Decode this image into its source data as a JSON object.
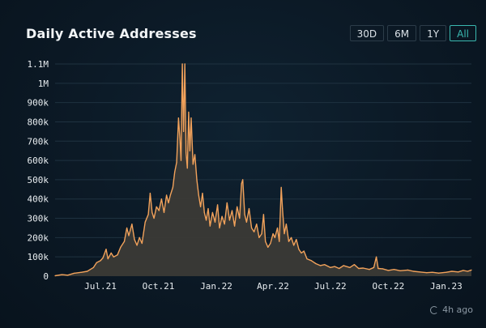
{
  "chart_data": {
    "type": "area",
    "title": "Daily Active Addresses",
    "ylim": [
      0,
      1100000
    ],
    "y_ticks": [
      {
        "value": 0,
        "label": "0"
      },
      {
        "value": 100000,
        "label": "100k"
      },
      {
        "value": 200000,
        "label": "200k"
      },
      {
        "value": 300000,
        "label": "300k"
      },
      {
        "value": 400000,
        "label": "400k"
      },
      {
        "value": 500000,
        "label": "500k"
      },
      {
        "value": 600000,
        "label": "600k"
      },
      {
        "value": 700000,
        "label": "700k"
      },
      {
        "value": 800000,
        "label": "800k"
      },
      {
        "value": 900000,
        "label": "900k"
      },
      {
        "value": 1000000,
        "label": "1M"
      },
      {
        "value": 1100000,
        "label": "1.1M"
      }
    ],
    "xlim": [
      "2021-04-20",
      "2023-02-10"
    ],
    "x_ticks": [
      {
        "date": "2021-07-01",
        "label": "Jul.21"
      },
      {
        "date": "2021-10-01",
        "label": "Oct.21"
      },
      {
        "date": "2022-01-01",
        "label": "Jan.22"
      },
      {
        "date": "2022-04-01",
        "label": "Apr.22"
      },
      {
        "date": "2022-07-01",
        "label": "Jul.22"
      },
      {
        "date": "2022-10-01",
        "label": "Oct.22"
      },
      {
        "date": "2023-01-01",
        "label": "Jan.23"
      }
    ],
    "grid": true,
    "series": [
      {
        "color": "#f2a25b",
        "points": [
          [
            "2021-04-20",
            2000
          ],
          [
            "2021-05-01",
            8000
          ],
          [
            "2021-05-10",
            5000
          ],
          [
            "2021-05-20",
            15000
          ],
          [
            "2021-06-01",
            20000
          ],
          [
            "2021-06-10",
            25000
          ],
          [
            "2021-06-20",
            45000
          ],
          [
            "2021-06-25",
            70000
          ],
          [
            "2021-07-01",
            80000
          ],
          [
            "2021-07-05",
            95000
          ],
          [
            "2021-07-10",
            140000
          ],
          [
            "2021-07-13",
            90000
          ],
          [
            "2021-07-18",
            120000
          ],
          [
            "2021-07-22",
            100000
          ],
          [
            "2021-07-28",
            110000
          ],
          [
            "2021-08-02",
            150000
          ],
          [
            "2021-08-08",
            180000
          ],
          [
            "2021-08-12",
            250000
          ],
          [
            "2021-08-15",
            210000
          ],
          [
            "2021-08-20",
            270000
          ],
          [
            "2021-08-24",
            190000
          ],
          [
            "2021-08-28",
            160000
          ],
          [
            "2021-09-01",
            200000
          ],
          [
            "2021-09-05",
            170000
          ],
          [
            "2021-09-10",
            280000
          ],
          [
            "2021-09-15",
            320000
          ],
          [
            "2021-09-18",
            430000
          ],
          [
            "2021-09-21",
            330000
          ],
          [
            "2021-09-24",
            300000
          ],
          [
            "2021-09-28",
            360000
          ],
          [
            "2021-10-02",
            340000
          ],
          [
            "2021-10-06",
            400000
          ],
          [
            "2021-10-10",
            330000
          ],
          [
            "2021-10-14",
            420000
          ],
          [
            "2021-10-17",
            380000
          ],
          [
            "2021-10-20",
            420000
          ],
          [
            "2021-10-24",
            460000
          ],
          [
            "2021-10-27",
            540000
          ],
          [
            "2021-10-30",
            590000
          ],
          [
            "2021-11-02",
            820000
          ],
          [
            "2021-11-04",
            720000
          ],
          [
            "2021-11-06",
            600000
          ],
          [
            "2021-11-08",
            1100000
          ],
          [
            "2021-11-10",
            750000
          ],
          [
            "2021-11-12",
            1100000
          ],
          [
            "2021-11-14",
            640000
          ],
          [
            "2021-11-16",
            560000
          ],
          [
            "2021-11-18",
            850000
          ],
          [
            "2021-11-20",
            650000
          ],
          [
            "2021-11-22",
            820000
          ],
          [
            "2021-11-25",
            580000
          ],
          [
            "2021-11-28",
            630000
          ],
          [
            "2021-12-01",
            500000
          ],
          [
            "2021-12-04",
            420000
          ],
          [
            "2021-12-07",
            360000
          ],
          [
            "2021-12-10",
            430000
          ],
          [
            "2021-12-13",
            330000
          ],
          [
            "2021-12-16",
            290000
          ],
          [
            "2021-12-19",
            350000
          ],
          [
            "2021-12-22",
            260000
          ],
          [
            "2021-12-26",
            330000
          ],
          [
            "2021-12-30",
            280000
          ],
          [
            "2022-01-03",
            370000
          ],
          [
            "2022-01-06",
            250000
          ],
          [
            "2022-01-10",
            310000
          ],
          [
            "2022-01-14",
            270000
          ],
          [
            "2022-01-18",
            380000
          ],
          [
            "2022-01-22",
            290000
          ],
          [
            "2022-01-26",
            340000
          ],
          [
            "2022-01-30",
            260000
          ],
          [
            "2022-02-03",
            360000
          ],
          [
            "2022-02-07",
            300000
          ],
          [
            "2022-02-10",
            480000
          ],
          [
            "2022-02-12",
            500000
          ],
          [
            "2022-02-15",
            320000
          ],
          [
            "2022-02-18",
            280000
          ],
          [
            "2022-02-22",
            350000
          ],
          [
            "2022-02-26",
            250000
          ],
          [
            "2022-03-02",
            230000
          ],
          [
            "2022-03-06",
            270000
          ],
          [
            "2022-03-10",
            200000
          ],
          [
            "2022-03-14",
            220000
          ],
          [
            "2022-03-17",
            320000
          ],
          [
            "2022-03-20",
            180000
          ],
          [
            "2022-03-24",
            150000
          ],
          [
            "2022-03-28",
            170000
          ],
          [
            "2022-04-01",
            220000
          ],
          [
            "2022-04-04",
            200000
          ],
          [
            "2022-04-08",
            250000
          ],
          [
            "2022-04-11",
            180000
          ],
          [
            "2022-04-14",
            460000
          ],
          [
            "2022-04-16",
            350000
          ],
          [
            "2022-04-19",
            220000
          ],
          [
            "2022-04-22",
            270000
          ],
          [
            "2022-04-26",
            180000
          ],
          [
            "2022-04-30",
            200000
          ],
          [
            "2022-05-04",
            160000
          ],
          [
            "2022-05-08",
            190000
          ],
          [
            "2022-05-12",
            140000
          ],
          [
            "2022-05-16",
            120000
          ],
          [
            "2022-05-20",
            130000
          ],
          [
            "2022-05-25",
            90000
          ],
          [
            "2022-06-01",
            80000
          ],
          [
            "2022-06-08",
            65000
          ],
          [
            "2022-06-15",
            55000
          ],
          [
            "2022-06-22",
            60000
          ],
          [
            "2022-07-01",
            45000
          ],
          [
            "2022-07-08",
            50000
          ],
          [
            "2022-07-15",
            40000
          ],
          [
            "2022-07-22",
            55000
          ],
          [
            "2022-08-01",
            45000
          ],
          [
            "2022-08-08",
            60000
          ],
          [
            "2022-08-15",
            40000
          ],
          [
            "2022-08-22",
            42000
          ],
          [
            "2022-09-01",
            35000
          ],
          [
            "2022-09-08",
            45000
          ],
          [
            "2022-09-12",
            100000
          ],
          [
            "2022-09-15",
            40000
          ],
          [
            "2022-09-22",
            38000
          ],
          [
            "2022-10-01",
            30000
          ],
          [
            "2022-10-10",
            35000
          ],
          [
            "2022-10-20",
            28000
          ],
          [
            "2022-11-01",
            32000
          ],
          [
            "2022-11-10",
            25000
          ],
          [
            "2022-11-20",
            22000
          ],
          [
            "2022-12-01",
            18000
          ],
          [
            "2022-12-10",
            20000
          ],
          [
            "2022-12-20",
            16000
          ],
          [
            "2023-01-01",
            20000
          ],
          [
            "2023-01-10",
            25000
          ],
          [
            "2023-01-20",
            22000
          ],
          [
            "2023-01-28",
            30000
          ],
          [
            "2023-02-04",
            25000
          ],
          [
            "2023-02-10",
            32000
          ]
        ]
      }
    ]
  },
  "range_buttons": [
    "30D",
    "6M",
    "1Y",
    "All"
  ],
  "active_range": "All",
  "footer": {
    "updated": "4h ago"
  }
}
